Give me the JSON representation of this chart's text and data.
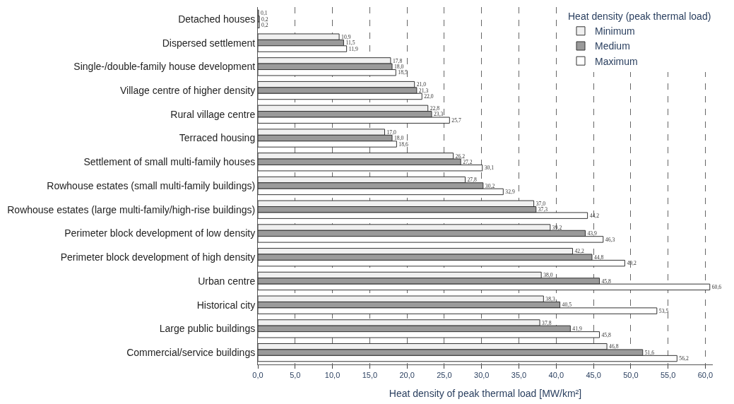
{
  "chart_data": {
    "type": "bar",
    "orientation": "horizontal",
    "categories": [
      "Detached houses",
      "Dispersed settlement",
      "Single-/double-family house development",
      "Village centre of higher density",
      "Rural village centre",
      "Terraced housing",
      "Settlement of small multi-family houses",
      "Rowhouse estates (small multi-family buildings)",
      "Rowhouse estates (large multi-family/high-rise buildings)",
      "Perimeter block development of low density",
      "Perimeter block development of high density",
      "Urban centre",
      "Historical city",
      "Large public buildings",
      "Commercial/service buildings"
    ],
    "series": [
      {
        "name": "Minimum",
        "color": "#f0f0f0",
        "values": [
          0.1,
          10.9,
          17.8,
          21.0,
          22.8,
          17.0,
          26.2,
          27.8,
          37.0,
          39.2,
          42.2,
          38.0,
          38.3,
          37.8,
          46.8
        ],
        "value_labels": [
          "0,1",
          "10,9",
          "17,8",
          "21,0",
          "22,8",
          "17,0",
          "26,2",
          "27,8",
          "37,0",
          "39,2",
          "42,2",
          "38,0",
          "38,3",
          "37,8",
          "46,8"
        ]
      },
      {
        "name": "Medium",
        "color": "#9a9a9a",
        "values": [
          0.2,
          11.5,
          18.0,
          21.3,
          23.3,
          18.0,
          27.2,
          30.2,
          37.3,
          43.9,
          44.8,
          45.8,
          40.5,
          41.9,
          51.6
        ],
        "value_labels": [
          "0,2",
          "11,5",
          "18,0",
          "21,3",
          "23,3",
          "18,0",
          "27,2",
          "30,2",
          "37,3",
          "43,9",
          "44,8",
          "45,8",
          "40,5",
          "41,9",
          "51,6"
        ]
      },
      {
        "name": "Maximum",
        "color": "#ffffff",
        "values": [
          0.2,
          11.9,
          18.5,
          22.0,
          25.7,
          18.6,
          30.1,
          32.9,
          44.2,
          46.3,
          49.2,
          60.6,
          53.5,
          45.8,
          56.2
        ],
        "value_labels": [
          "0,2",
          "11,9",
          "18,5",
          "22,0",
          "25,7",
          "18,6",
          "30,1",
          "32,9",
          "44,2",
          "46,3",
          "49,2",
          "60,6",
          "53,5",
          "45,8",
          "56,2"
        ]
      }
    ],
    "xlabel": "Heat density of peak thermal load [MW/km²]",
    "legend_title": "Heat density (peak thermal load)",
    "legend": "top right",
    "grid": "x",
    "xlim": [
      0,
      61
    ],
    "xticks": [
      {
        "value": 0,
        "label": "0,0"
      },
      {
        "value": 5,
        "label": "5,0"
      },
      {
        "value": 10,
        "label": "10,0"
      },
      {
        "value": 15,
        "label": "15,0"
      },
      {
        "value": 20,
        "label": "20,0"
      },
      {
        "value": 25,
        "label": "25,0"
      },
      {
        "value": 30,
        "label": "30,0"
      },
      {
        "value": 35,
        "label": "35,0"
      },
      {
        "value": 40,
        "label": "40,0"
      },
      {
        "value": 45,
        "label": "45,0"
      },
      {
        "value": 50,
        "label": "50,0"
      },
      {
        "value": 55,
        "label": "55,0"
      },
      {
        "value": 60,
        "label": "60,0"
      }
    ]
  }
}
